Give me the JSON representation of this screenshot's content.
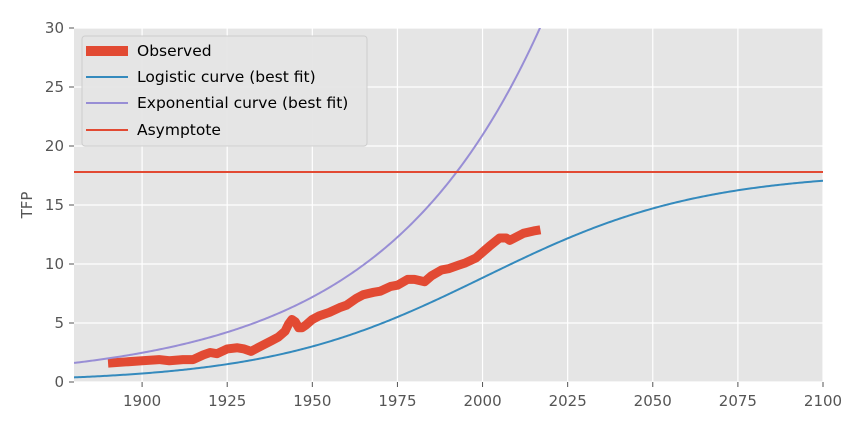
{
  "chart_data": {
    "type": "line",
    "title": "",
    "xlabel": "",
    "ylabel": "TFP",
    "xlim": [
      1880,
      2100
    ],
    "ylim": [
      0,
      30
    ],
    "xticks": [
      1900,
      1925,
      1950,
      1975,
      2000,
      2025,
      2050,
      2075,
      2100
    ],
    "yticks": [
      0,
      5,
      10,
      15,
      20,
      25,
      30
    ],
    "grid": true,
    "legend_position": "top-left",
    "asymptote": 17.8,
    "series": [
      {
        "name": "Observed",
        "color": "#e24a33",
        "style": "thick",
        "x": [
          1890,
          1895,
          1900,
          1905,
          1908,
          1912,
          1915,
          1918,
          1920,
          1922,
          1925,
          1928,
          1930,
          1932,
          1934,
          1936,
          1938,
          1940,
          1942,
          1943,
          1944,
          1945,
          1946,
          1947,
          1948,
          1950,
          1952,
          1955,
          1958,
          1960,
          1963,
          1965,
          1968,
          1970,
          1973,
          1975,
          1978,
          1980,
          1983,
          1985,
          1988,
          1990,
          1993,
          1995,
          1998,
          2000,
          2002,
          2005,
          2007,
          2008,
          2010,
          2012,
          2015,
          2017
        ],
        "y": [
          1.6,
          1.7,
          1.8,
          1.9,
          1.8,
          1.9,
          1.9,
          2.3,
          2.5,
          2.4,
          2.8,
          2.9,
          2.8,
          2.6,
          2.9,
          3.2,
          3.5,
          3.8,
          4.3,
          4.9,
          5.3,
          5.1,
          4.6,
          4.6,
          4.8,
          5.3,
          5.6,
          5.9,
          6.3,
          6.5,
          7.1,
          7.4,
          7.6,
          7.7,
          8.1,
          8.2,
          8.7,
          8.7,
          8.5,
          9.0,
          9.5,
          9.6,
          9.9,
          10.1,
          10.5,
          11.0,
          11.5,
          12.2,
          12.2,
          12.0,
          12.3,
          12.6,
          12.8,
          12.9
        ]
      },
      {
        "name": "Logistic curve (best fit)",
        "color": "#348abd",
        "model": "logistic"
      },
      {
        "name": "Exponential curve (best fit)",
        "color": "#988ed5",
        "model": "exponential"
      },
      {
        "name": "Asymptote",
        "color": "#e24a33",
        "model": "constant"
      }
    ]
  }
}
